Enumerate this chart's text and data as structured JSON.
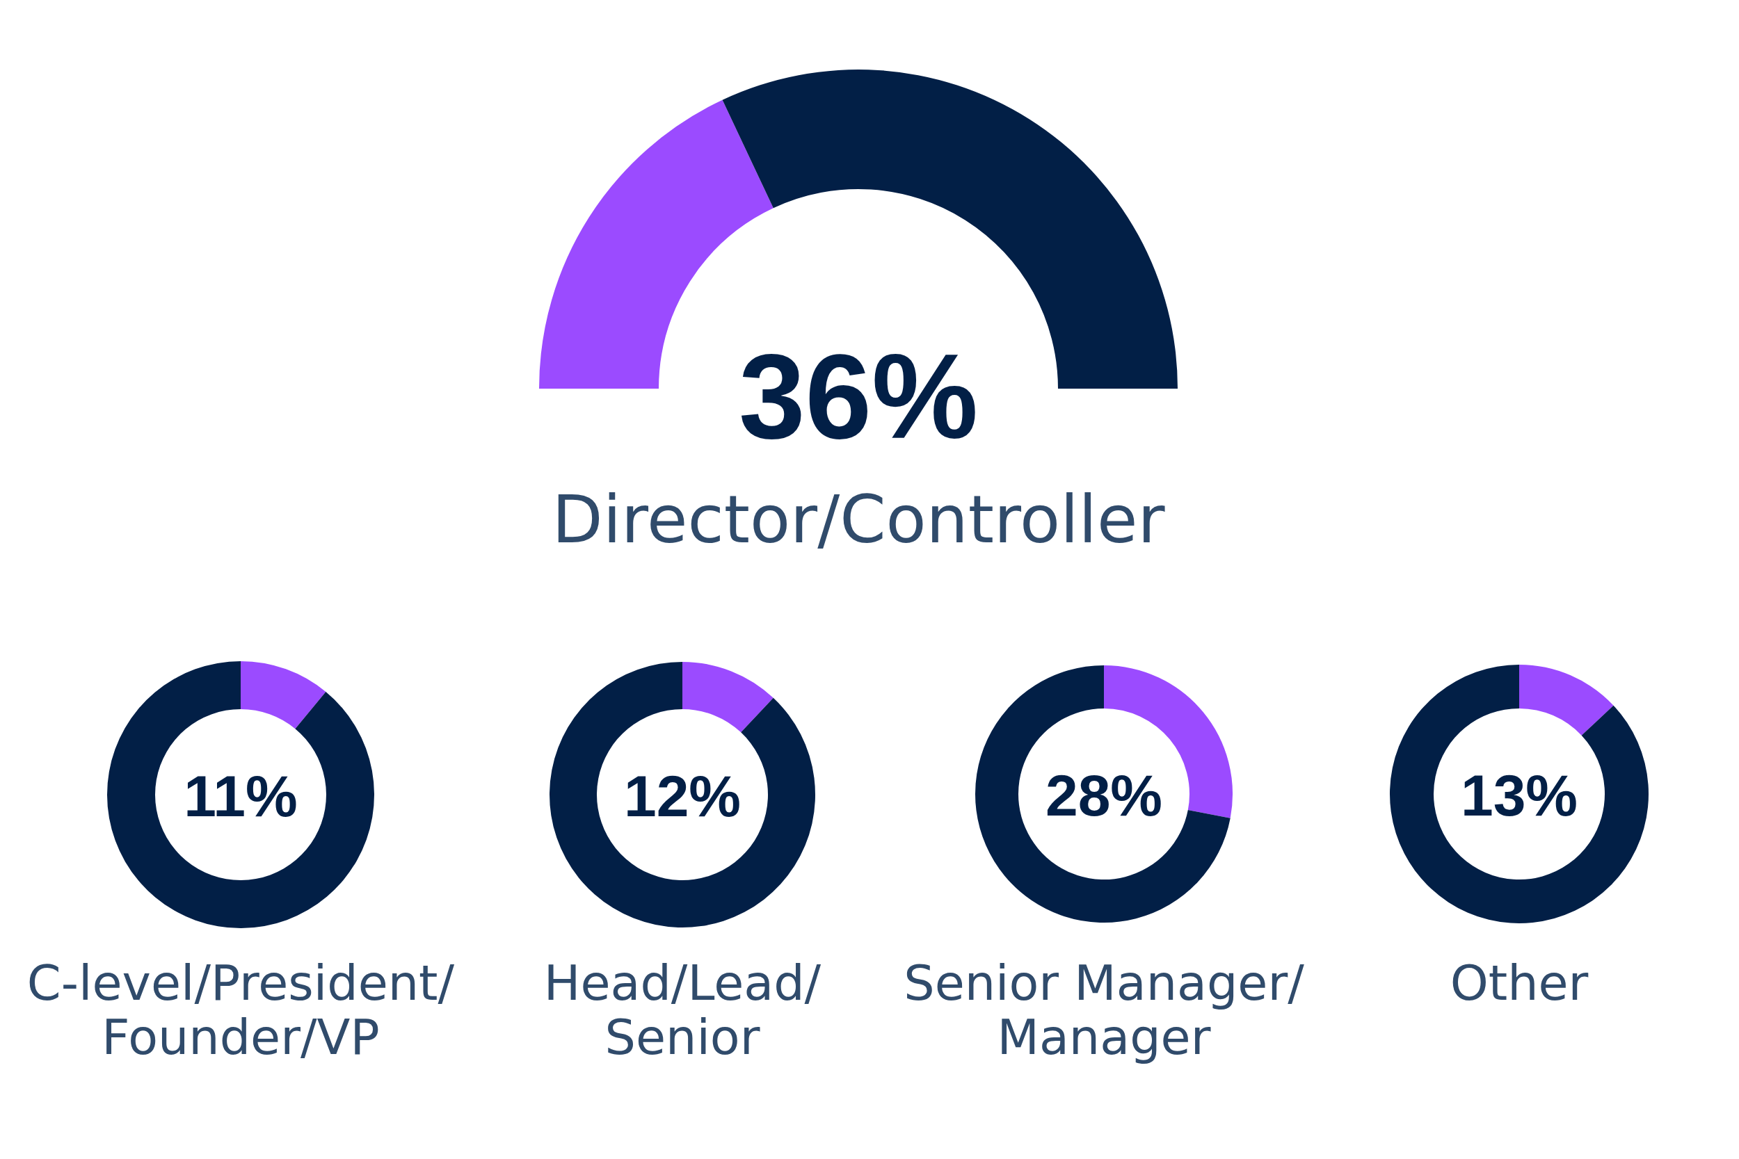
{
  "chart_data": [
    {
      "type": "donut",
      "title": "Director/Controller",
      "categories": [
        null,
        null
      ],
      "values": [
        36,
        64
      ],
      "colors": [
        "#9b4bff",
        "#021f46"
      ],
      "annotations": [
        "36%"
      ]
    },
    {
      "type": "donut",
      "title": "C-level/President/\nFounder/VP",
      "categories": [
        null,
        null
      ],
      "values": [
        11,
        89
      ],
      "colors": [
        "#9b4bff",
        "#021f46"
      ],
      "annotations": [
        "11%"
      ]
    },
    {
      "type": "donut",
      "title": "Head/Lead/\nSenior",
      "categories": [
        null,
        null
      ],
      "values": [
        12,
        88
      ],
      "colors": [
        "#9b4bff",
        "#021f46"
      ],
      "annotations": [
        "12%"
      ]
    },
    {
      "type": "donut",
      "title": "Senior Manager/\nManager",
      "categories": [
        null,
        null
      ],
      "values": [
        28,
        72
      ],
      "colors": [
        "#9b4bff",
        "#021f46"
      ],
      "annotations": [
        "28%"
      ]
    },
    {
      "type": "donut",
      "title": "Other",
      "categories": [
        null,
        null
      ],
      "values": [
        13,
        87
      ],
      "colors": [
        "#9b4bff",
        "#021f46"
      ],
      "annotations": [
        "13%"
      ]
    }
  ]
}
